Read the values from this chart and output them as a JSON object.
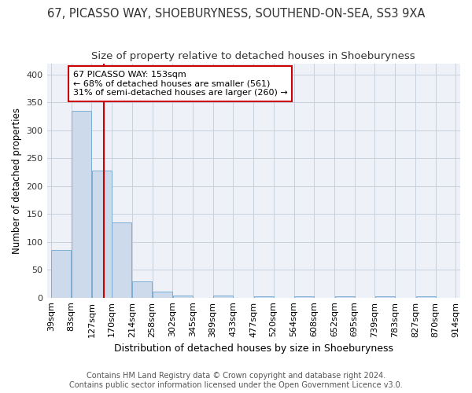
{
  "title": "67, PICASSO WAY, SHOEBURYNESS, SOUTHEND-ON-SEA, SS3 9XA",
  "subtitle": "Size of property relative to detached houses in Shoeburyness",
  "xlabel": "Distribution of detached houses by size in Shoeburyness",
  "ylabel": "Number of detached properties",
  "footer_line1": "Contains HM Land Registry data © Crown copyright and database right 2024.",
  "footer_line2": "Contains public sector information licensed under the Open Government Licence v3.0.",
  "annotation_line1": "67 PICASSO WAY: 153sqm",
  "annotation_line2": "← 68% of detached houses are smaller (561)",
  "annotation_line3": "31% of semi-detached houses are larger (260) →",
  "property_size": 153,
  "bar_edges": [
    39,
    83,
    127,
    170,
    214,
    258,
    302,
    345,
    389,
    433,
    477,
    520,
    564,
    608,
    652,
    695,
    739,
    783,
    827,
    870,
    914
  ],
  "bar_values": [
    85,
    335,
    228,
    135,
    29,
    11,
    4,
    0,
    4,
    0,
    2,
    0,
    2,
    0,
    2,
    0,
    2,
    0,
    2,
    0
  ],
  "bar_color": "#ccdaeb",
  "bar_edge_color": "#7aadd4",
  "vline_color": "#cc0000",
  "vline_x": 153,
  "annotation_box_color": "#cc0000",
  "grid_color": "#c8d0dc",
  "background_color": "#eef2f8",
  "ylim": [
    0,
    420
  ],
  "yticks": [
    0,
    50,
    100,
    150,
    200,
    250,
    300,
    350,
    400
  ],
  "title_fontsize": 10.5,
  "subtitle_fontsize": 9.5,
  "xlabel_fontsize": 9,
  "ylabel_fontsize": 8.5,
  "tick_fontsize": 8,
  "annotation_fontsize": 8,
  "footer_fontsize": 7
}
